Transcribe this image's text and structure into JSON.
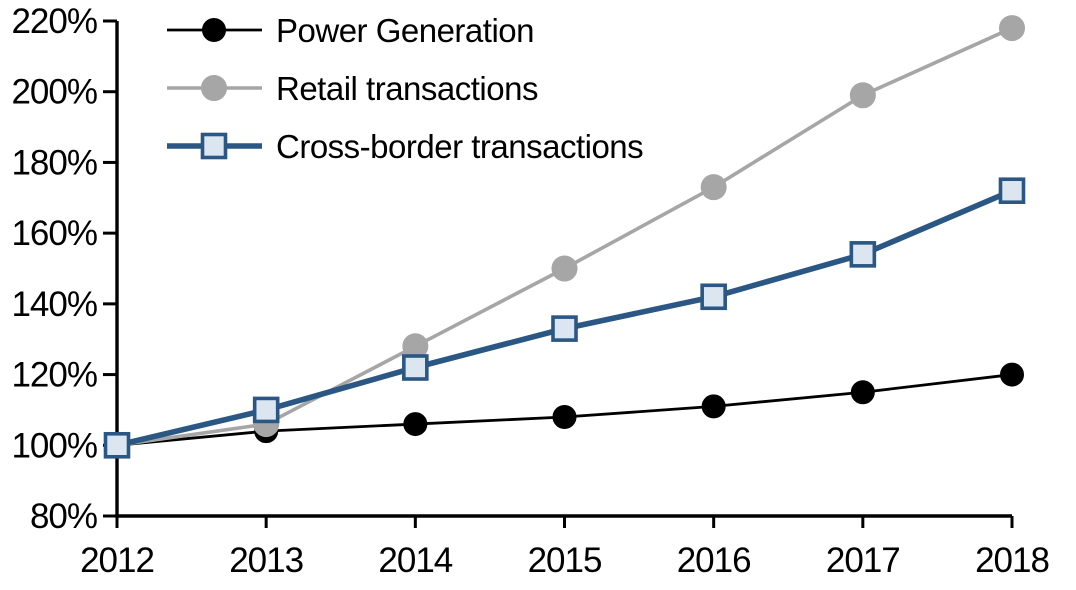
{
  "chart_data": {
    "type": "line",
    "title": "",
    "categories": [
      "2012",
      "2013",
      "2014",
      "2015",
      "2016",
      "2017",
      "2018"
    ],
    "series": [
      {
        "name": "Power Generation",
        "color": "#000000",
        "marker": "circle",
        "marker_fill": "#000000",
        "marker_stroke": "#000000",
        "values": [
          100,
          104,
          106,
          108,
          111,
          115,
          120
        ]
      },
      {
        "name": "Retail transactions",
        "color": "#a6a6a6",
        "marker": "circle",
        "marker_fill": "#a6a6a6",
        "marker_stroke": "#a6a6a6",
        "values": [
          100,
          106,
          128,
          150,
          173,
          199,
          218
        ]
      },
      {
        "name": "Cross-border transactions",
        "color": "#2a5783",
        "marker": "square",
        "marker_fill": "#dce6f1",
        "marker_stroke": "#2a5783",
        "values": [
          100,
          110,
          122,
          133,
          142,
          154,
          172
        ]
      }
    ],
    "x_axis": {
      "labels": [
        "2012",
        "2013",
        "2014",
        "2015",
        "2016",
        "2017",
        "2018"
      ]
    },
    "y_axis": {
      "min": 80,
      "max": 220,
      "tick_step": 20,
      "ticks": [
        220,
        200,
        180,
        160,
        140,
        120,
        100,
        80
      ],
      "tick_labels": [
        "220%",
        "200%",
        "180%",
        "160%",
        "140%",
        "120%",
        "100%",
        "80%"
      ]
    },
    "legend": {
      "position": "top-left",
      "entries": [
        "Power Generation",
        "Retail transactions",
        "Cross-border transactions"
      ]
    },
    "grid": false,
    "axis_color": "#000000"
  }
}
